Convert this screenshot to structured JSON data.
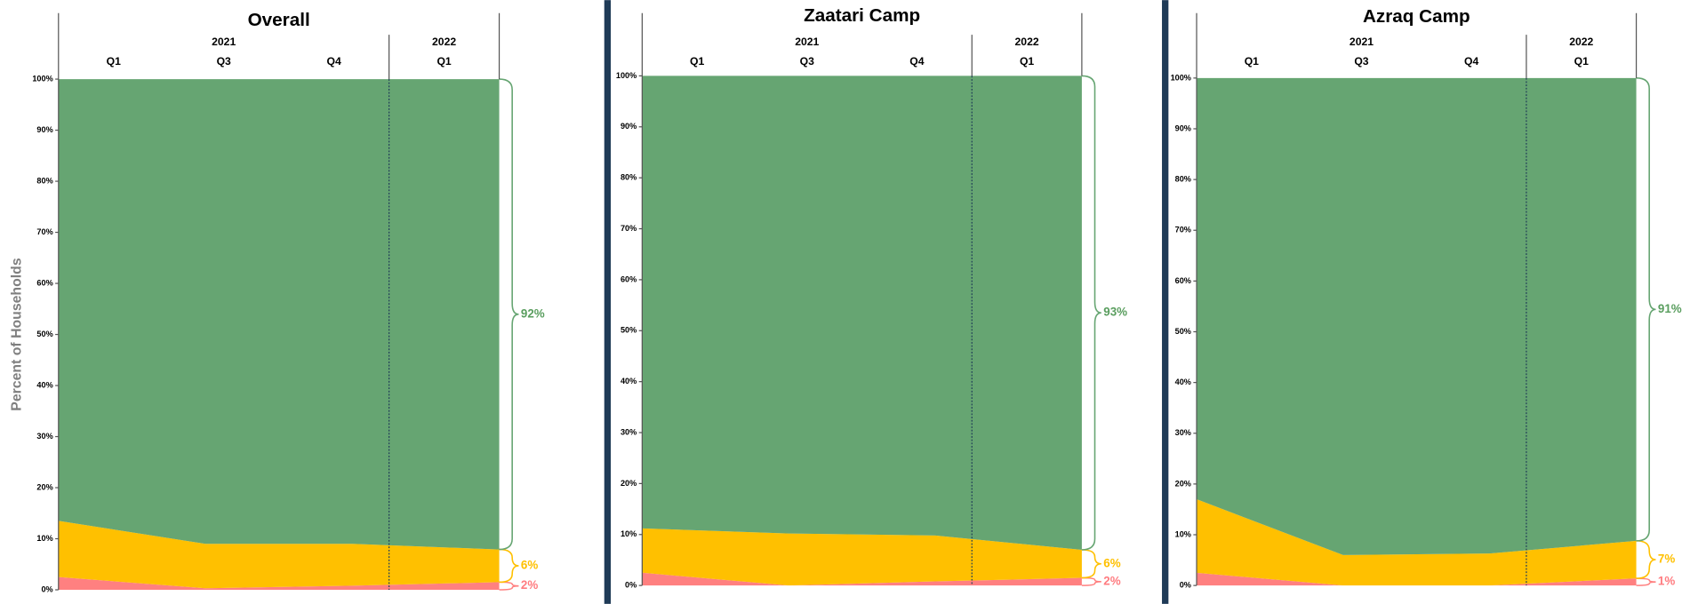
{
  "chart_data": [
    {
      "type": "area",
      "title": "Overall",
      "y_label": "Percent of Households",
      "categories": [
        "Q1",
        "Q3",
        "Q4",
        "Q1"
      ],
      "groups": [
        {
          "name": "2021",
          "count": 3
        },
        {
          "name": "2022",
          "count": 1
        }
      ],
      "series": [
        {
          "color": "#ff8080",
          "label_color": "#ff7c80",
          "values": [
            2.5,
            0.3,
            0.8,
            1.5
          ],
          "value_labels": [
            null,
            null,
            null,
            "2%"
          ]
        },
        {
          "color": "#ffc000",
          "label_color": "#ffc000",
          "values": [
            11,
            8.7,
            8.2,
            6.4
          ],
          "value_labels": [
            null,
            null,
            null,
            "6%"
          ]
        },
        {
          "color": "#66a572",
          "label_color": "#5a9e5f",
          "values": [
            86.5,
            91,
            91,
            92.1
          ],
          "value_labels": [
            null,
            null,
            null,
            "92%"
          ]
        }
      ],
      "ylim": [
        0,
        100
      ],
      "yticks": [
        {
          "value": 0,
          "label": "0%"
        },
        {
          "value": 10,
          "label": "10%"
        },
        {
          "value": 20,
          "label": "20%"
        },
        {
          "value": 30,
          "label": "30%"
        },
        {
          "value": 40,
          "label": "40%"
        },
        {
          "value": 50,
          "label": "50%"
        },
        {
          "value": 60,
          "label": "60%"
        },
        {
          "value": 70,
          "label": "70%"
        },
        {
          "value": 80,
          "label": "80%"
        },
        {
          "value": 90,
          "label": "90%"
        },
        {
          "value": 100,
          "label": "100%"
        }
      ]
    },
    {
      "type": "area",
      "title": "Zaatari Camp",
      "categories": [
        "Q1",
        "Q3",
        "Q4",
        "Q1"
      ],
      "groups": [
        {
          "name": "2021",
          "count": 3
        },
        {
          "name": "2022",
          "count": 1
        }
      ],
      "series": [
        {
          "color": "#ff8080",
          "label_color": "#ff7c80",
          "values": [
            2.5,
            0,
            0.8,
            1.5
          ],
          "value_labels": [
            null,
            null,
            null,
            "2%"
          ]
        },
        {
          "color": "#ffc000",
          "label_color": "#ffc000",
          "values": [
            8.7,
            10.2,
            9,
            5.5
          ],
          "value_labels": [
            null,
            null,
            null,
            "6%"
          ]
        },
        {
          "color": "#66a572",
          "label_color": "#5a9e5f",
          "values": [
            88.8,
            89.8,
            90.2,
            93
          ],
          "value_labels": [
            null,
            null,
            null,
            "93%"
          ]
        }
      ],
      "ylim": [
        0,
        100
      ],
      "yticks": [
        {
          "value": 0,
          "label": "0%"
        },
        {
          "value": 10,
          "label": "10%"
        },
        {
          "value": 20,
          "label": "20%"
        },
        {
          "value": 30,
          "label": "30%"
        },
        {
          "value": 40,
          "label": "40%"
        },
        {
          "value": 50,
          "label": "50%"
        },
        {
          "value": 60,
          "label": "60%"
        },
        {
          "value": 70,
          "label": "70%"
        },
        {
          "value": 80,
          "label": "80%"
        },
        {
          "value": 90,
          "label": "90%"
        },
        {
          "value": 100,
          "label": "100%"
        }
      ]
    },
    {
      "type": "area",
      "title": "Azraq Camp",
      "categories": [
        "Q1",
        "Q3",
        "Q4",
        "Q1"
      ],
      "groups": [
        {
          "name": "2021",
          "count": 3
        },
        {
          "name": "2022",
          "count": 1
        }
      ],
      "series": [
        {
          "color": "#ff8080",
          "label_color": "#ff7c80",
          "values": [
            2.5,
            0,
            0,
            1.4
          ],
          "value_labels": [
            null,
            null,
            null,
            "1%"
          ]
        },
        {
          "color": "#ffc000",
          "label_color": "#ffc000",
          "values": [
            14.5,
            6,
            6.3,
            7.4
          ],
          "value_labels": [
            null,
            null,
            null,
            "7%"
          ]
        },
        {
          "color": "#66a572",
          "label_color": "#5a9e5f",
          "values": [
            83,
            94,
            93.7,
            91.2
          ],
          "value_labels": [
            null,
            null,
            null,
            "91%"
          ]
        }
      ],
      "ylim": [
        0,
        100
      ],
      "yticks": [
        {
          "value": 0,
          "label": "0%"
        },
        {
          "value": 10,
          "label": "10%"
        },
        {
          "value": 20,
          "label": "20%"
        },
        {
          "value": 30,
          "label": "30%"
        },
        {
          "value": 40,
          "label": "40%"
        },
        {
          "value": 50,
          "label": "50%"
        },
        {
          "value": 60,
          "label": "60%"
        },
        {
          "value": 70,
          "label": "70%"
        },
        {
          "value": 80,
          "label": "80%"
        },
        {
          "value": 90,
          "label": "90%"
        },
        {
          "value": 100,
          "label": "100%"
        }
      ]
    }
  ]
}
